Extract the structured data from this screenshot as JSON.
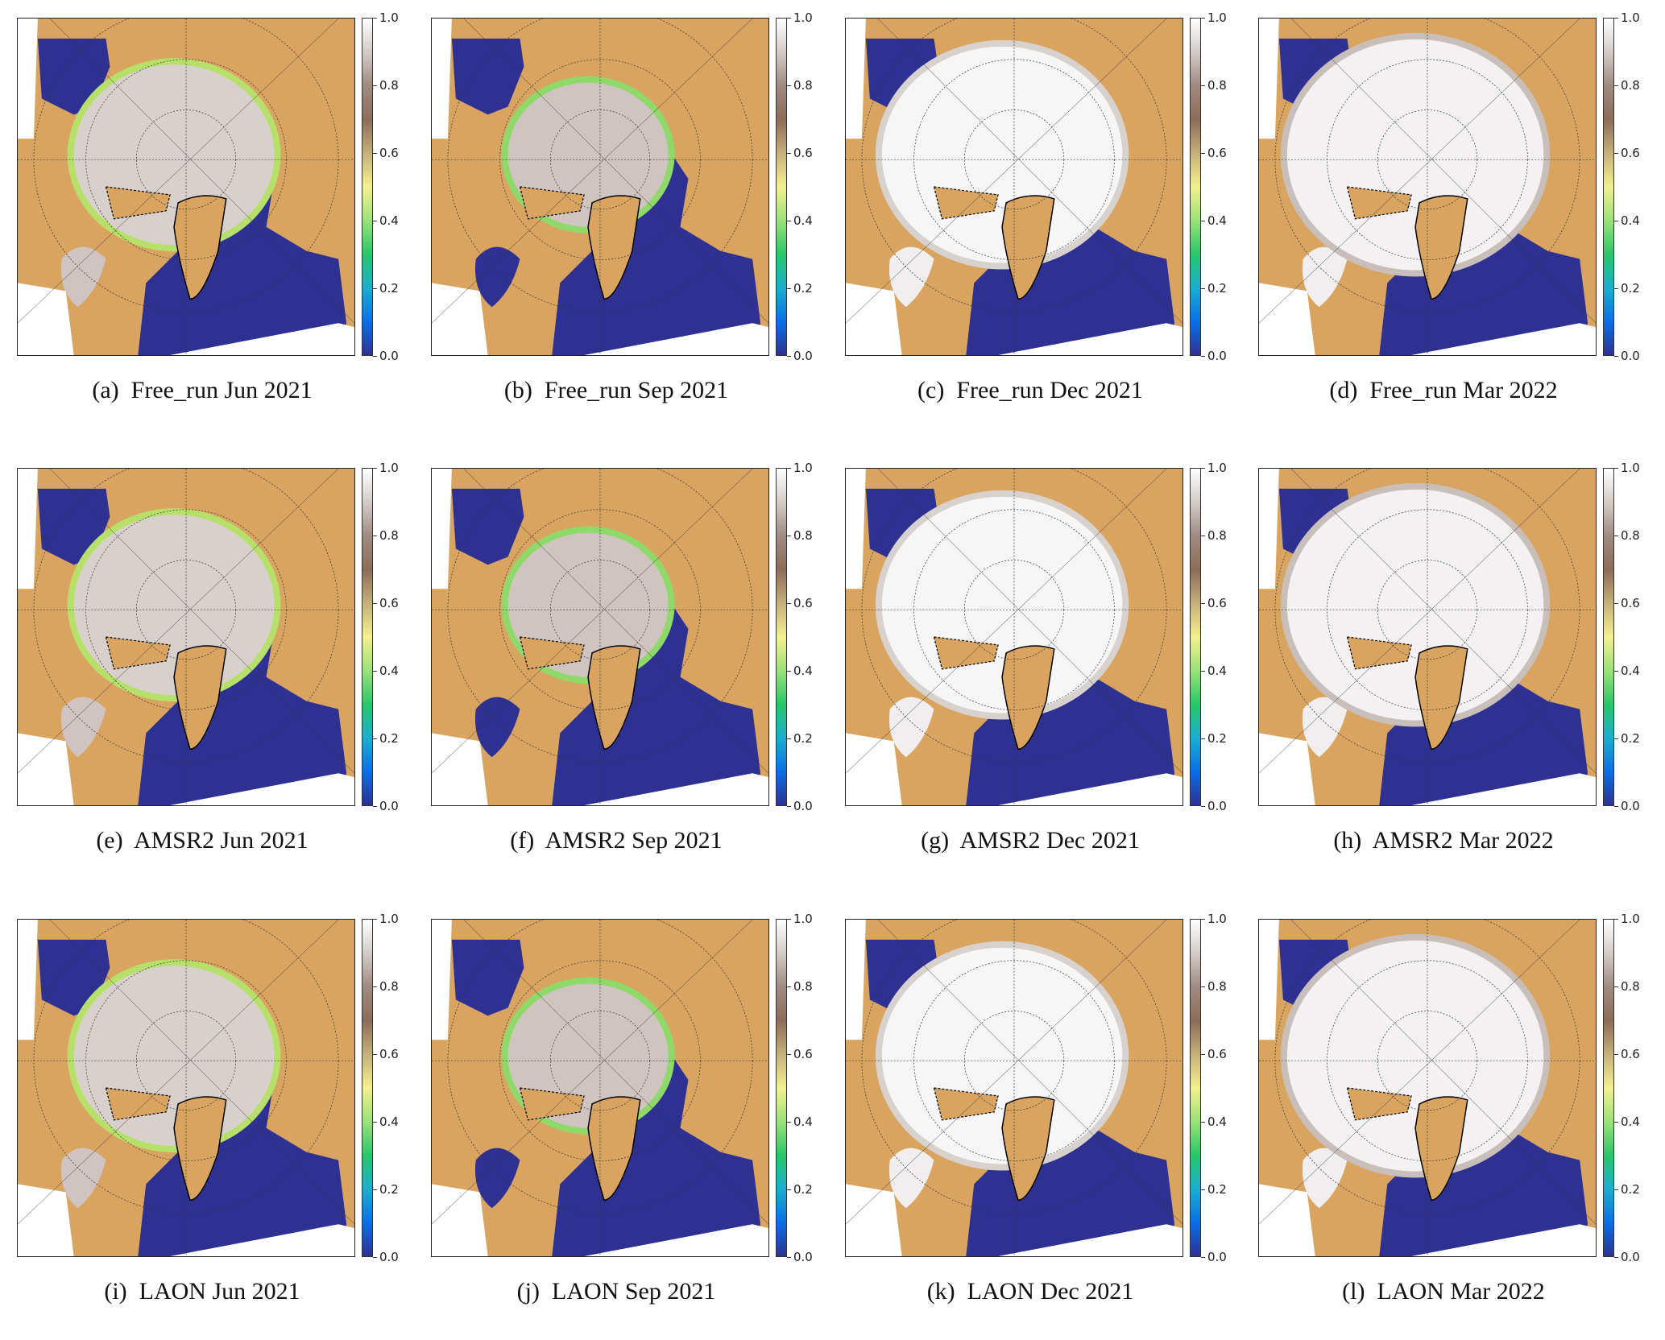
{
  "figure": {
    "panels": [
      {
        "label": "(a)",
        "title": "Free_run Jun 2021",
        "month": "Jun"
      },
      {
        "label": "(b)",
        "title": "Free_run Sep 2021",
        "month": "Sep"
      },
      {
        "label": "(c)",
        "title": "Free_run Dec 2021",
        "month": "Dec"
      },
      {
        "label": "(d)",
        "title": "Free_run Mar 2022",
        "month": "Mar"
      },
      {
        "label": "(e)",
        "title": "AMSR2 Jun 2021",
        "month": "Jun"
      },
      {
        "label": "(f)",
        "title": "AMSR2 Sep 2021",
        "month": "Sep"
      },
      {
        "label": "(g)",
        "title": "AMSR2 Dec 2021",
        "month": "Dec"
      },
      {
        "label": "(h)",
        "title": "AMSR2 Mar 2022",
        "month": "Mar"
      },
      {
        "label": "(i)",
        "title": "LAON Jun 2021",
        "month": "Jun"
      },
      {
        "label": "(j)",
        "title": "LAON Sep 2021",
        "month": "Sep"
      },
      {
        "label": "(k)",
        "title": "LAON Dec 2021",
        "month": "Dec"
      },
      {
        "label": "(l)",
        "title": "LAON Mar 2022",
        "month": "Mar"
      }
    ],
    "colorbar": {
      "ticks": [
        "0.0",
        "0.2",
        "0.4",
        "0.6",
        "0.8",
        "1.0"
      ],
      "range": [
        0.0,
        1.0
      ],
      "colormap": [
        "#2e3192",
        "#0a6fe8",
        "#1aaed0",
        "#27c868",
        "#9ae27a",
        "#f3f08e",
        "#c6b07a",
        "#8c6c58",
        "#a08a80",
        "#d2ccc8",
        "#ffffff"
      ]
    },
    "colors": {
      "land": "#d9a460",
      "ocean": "#2e3192",
      "no_data": "#ffffff",
      "coast": "#000000"
    }
  }
}
